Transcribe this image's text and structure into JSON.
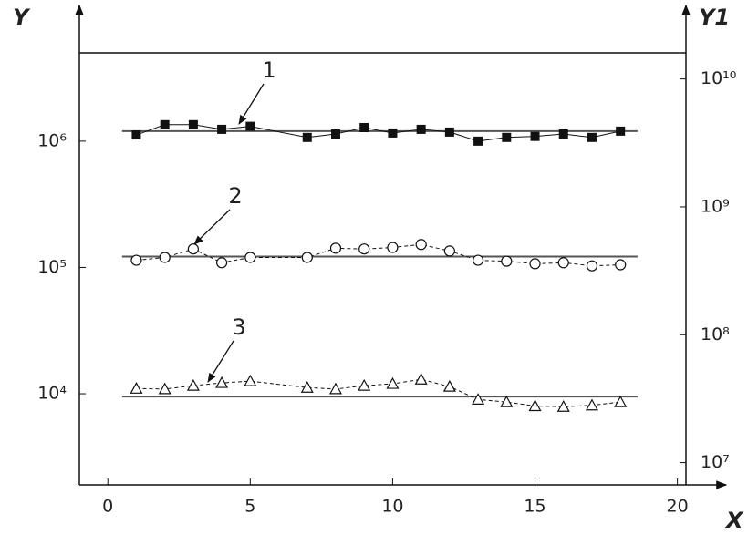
{
  "chart_data": {
    "type": "line",
    "x_label": "X",
    "y_label": "Y",
    "y2_label": "Y1",
    "x": [
      1,
      2,
      3,
      4,
      5,
      7,
      8,
      9,
      10,
      11,
      12,
      13,
      14,
      15,
      16,
      17,
      18
    ],
    "series": [
      {
        "marker": "square-filled",
        "line_style": "solid",
        "color": "#111111",
        "values": [
          1120000,
          1350000,
          1350000,
          1240000,
          1310000,
          1070000,
          1140000,
          1280000,
          1160000,
          1240000,
          1180000,
          1000000,
          1070000,
          1090000,
          1140000,
          1070000,
          1200000
        ]
      },
      {
        "marker": "circle",
        "line_style": "dashed",
        "color": "#111111",
        "values": [
          114000,
          120000,
          140000,
          109000,
          120000,
          120000,
          142000,
          140000,
          144000,
          152000,
          135000,
          114000,
          112000,
          107000,
          109000,
          103000,
          105000
        ]
      },
      {
        "marker": "triangle",
        "line_style": "dashed",
        "color": "#111111",
        "values": [
          11000,
          10900,
          11600,
          12200,
          12600,
          11200,
          10900,
          11600,
          12000,
          13000,
          11400,
          9000,
          8600,
          8000,
          7900,
          8100,
          8600
        ]
      }
    ],
    "fit_lines": [
      {
        "x": [
          0.5,
          18.6
        ],
        "values": [
          1200000,
          1200000
        ]
      },
      {
        "x": [
          0.5,
          18.6
        ],
        "values": [
          122000,
          122000
        ]
      },
      {
        "x": [
          0.5,
          18.6
        ],
        "values": [
          9500,
          9500
        ]
      }
    ],
    "annotations": [
      "1",
      "2",
      "3"
    ],
    "xlim": [
      -1,
      20.3
    ],
    "xticks": [
      0,
      5,
      10,
      15,
      20
    ],
    "ylim": [
      1900,
      5000000
    ],
    "log_y": true,
    "yticks": [
      {
        "value": 10000,
        "label": "10⁴"
      },
      {
        "value": 100000,
        "label": "10⁵"
      },
      {
        "value": 1000000,
        "label": "10⁶"
      }
    ],
    "y2lim": [
      6700000,
      16000000000
    ],
    "log_y2": true,
    "y2ticks": [
      {
        "value": 10000000,
        "label": "10⁷"
      },
      {
        "value": 100000000,
        "label": "10⁸"
      },
      {
        "value": 1000000000,
        "label": "10⁹"
      },
      {
        "value": 10000000000,
        "label": "10¹⁰"
      }
    ]
  }
}
